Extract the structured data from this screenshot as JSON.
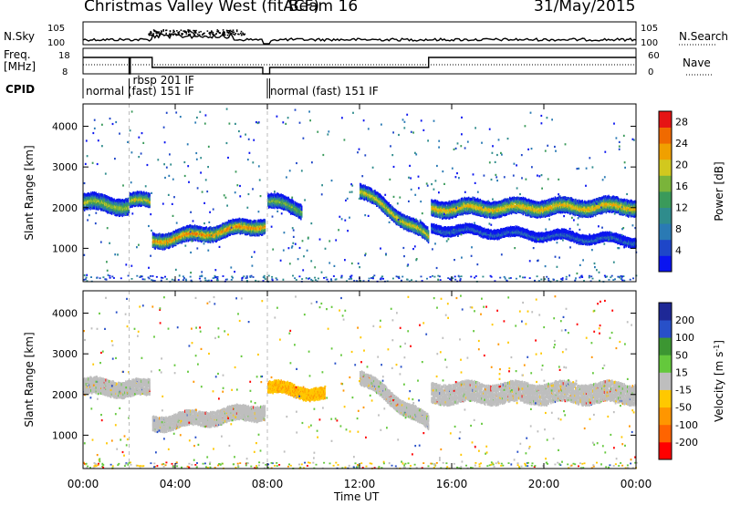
{
  "header": {
    "title": "Christmas Valley West (fitACF)",
    "beam": "Beam 16",
    "date": "31/May/2015"
  },
  "noise_panel": {
    "left_label": "N.Sky",
    "right_label": "N.Search",
    "left_ticks": [
      "10^5",
      "10^0"
    ],
    "right_ticks": [
      "10^5",
      "10^0"
    ]
  },
  "freq_panel": {
    "left_label_line1": "Freq.",
    "left_label_line2": "[MHz]",
    "right_label": "Nave",
    "left_ticks": [
      "18",
      "8"
    ],
    "right_ticks": [
      "60",
      "0"
    ]
  },
  "cpid_panel": {
    "label": "CPID",
    "segments": [
      {
        "label": "normal (fast) 151 IF",
        "start_h": 0.0,
        "end_h": 2.0
      },
      {
        "label": "rbsp 201 IF",
        "start_h": 2.0,
        "end_h": 8.0
      },
      {
        "label": "normal (fast) 151 IF",
        "start_h": 8.0,
        "end_h": 24.0
      }
    ]
  },
  "chart_data": [
    {
      "type": "heatmap",
      "title": "",
      "xlabel": "Time UT",
      "ylabel": "Slant Range [km]",
      "xlim_hours": [
        0,
        24
      ],
      "ylim": [
        180,
        4550
      ],
      "x_tick_labels": [
        "00:00",
        "04:00",
        "08:00",
        "12:00",
        "16:00",
        "20:00",
        "00:00"
      ],
      "y_tick_labels": [
        "1000",
        "2000",
        "3000",
        "4000"
      ],
      "colorbar": {
        "label": "Power [dB]",
        "ticks": [
          "4",
          "8",
          "12",
          "16",
          "20",
          "24",
          "28"
        ],
        "range": [
          0,
          30
        ],
        "colors": [
          "#0a14f0",
          "#1e46c8",
          "#2a7ab4",
          "#2f8c8c",
          "#3a9a5a",
          "#7ab43a",
          "#d2c81e",
          "#f0a000",
          "#f06a00",
          "#e61414"
        ]
      },
      "bands": [
        {
          "start_h": 0.0,
          "end_h": 2.0,
          "center_km": [
            2150,
            2050
          ],
          "width_km": 350,
          "peak_db": 22
        },
        {
          "start_h": 2.0,
          "end_h": 2.9,
          "center_km": [
            2200,
            2150
          ],
          "width_km": 300,
          "peak_db": 24
        },
        {
          "start_h": 3.0,
          "end_h": 7.9,
          "center_km": [
            1200,
            1600
          ],
          "width_km": 320,
          "peak_db": 28
        },
        {
          "start_h": 8.0,
          "end_h": 9.5,
          "center_km": [
            2200,
            1950
          ],
          "width_km": 300,
          "peak_db": 20
        },
        {
          "start_h": 12.0,
          "end_h": 15.0,
          "center_km": [
            2450,
            1300
          ],
          "width_km": 300,
          "peak_db": 24
        },
        {
          "start_h": 15.1,
          "end_h": 24.0,
          "center_km": [
            2000,
            2050
          ],
          "width_km": 350,
          "peak_db": 26
        },
        {
          "start_h": 15.1,
          "end_h": 24.0,
          "center_km": [
            1500,
            1200
          ],
          "width_km": 180,
          "peak_db": 10
        }
      ]
    },
    {
      "type": "heatmap",
      "title": "",
      "xlabel": "Time UT",
      "ylabel": "Slant Range [km]",
      "xlim_hours": [
        0,
        24
      ],
      "ylim": [
        180,
        4550
      ],
      "x_tick_labels": [
        "00:00",
        "04:00",
        "08:00",
        "12:00",
        "16:00",
        "20:00",
        "00:00"
      ],
      "y_tick_labels": [
        "1000",
        "2000",
        "3000",
        "4000"
      ],
      "colorbar": {
        "label": "Velocity [m s^-1]",
        "ticks": [
          "200",
          "100",
          "50",
          "15",
          "-15",
          "-50",
          "-100",
          "-200"
        ],
        "colors": [
          "#1e2896",
          "#2850c8",
          "#3c9632",
          "#64c83c",
          "#bebebe",
          "#ffc800",
          "#ff9600",
          "#ff6400",
          "#ff0000"
        ]
      },
      "bands": [
        {
          "start_h": 0.0,
          "end_h": 2.9,
          "center_km": [
            2200,
            2150
          ],
          "width_km": 350,
          "velocity_class": "ground"
        },
        {
          "start_h": 3.0,
          "end_h": 7.9,
          "center_km": [
            1300,
            1600
          ],
          "width_km": 320,
          "velocity_class": "ground"
        },
        {
          "start_h": 8.0,
          "end_h": 10.5,
          "center_km": [
            2200,
            2000
          ],
          "width_km": 250,
          "velocity_class": "negative"
        },
        {
          "start_h": 12.0,
          "end_h": 15.0,
          "center_km": [
            2450,
            1300
          ],
          "width_km": 300,
          "velocity_class": "ground"
        },
        {
          "start_h": 15.1,
          "end_h": 24.0,
          "center_km": [
            2050,
            2050
          ],
          "width_km": 450,
          "velocity_class": "ground"
        }
      ]
    }
  ],
  "x_axis_label": "Time UT"
}
